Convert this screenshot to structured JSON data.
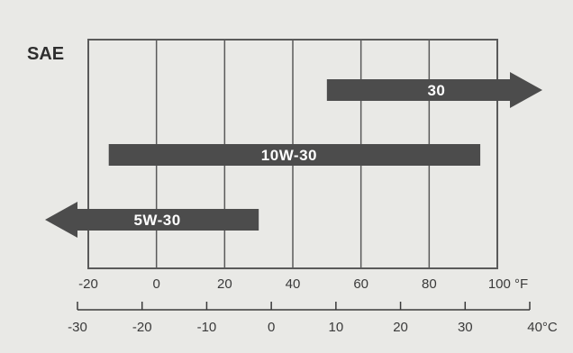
{
  "chart_data": {
    "type": "bar",
    "orientation": "horizontal-range",
    "title": "SAE",
    "x_axis_primary": {
      "unit_label": "°F",
      "ticks": [
        -20,
        0,
        20,
        40,
        60,
        80,
        100
      ],
      "range": [
        -20,
        100
      ]
    },
    "x_axis_secondary": {
      "unit_label": "°C",
      "ticks": [
        -30,
        -20,
        -10,
        0,
        10,
        20,
        30,
        40
      ],
      "range": [
        -30,
        40
      ]
    },
    "grid": true,
    "series": [
      {
        "name": "30",
        "start": 50,
        "end": 110,
        "open_ended": "right"
      },
      {
        "name": "10W-30",
        "start": -14,
        "end": 95,
        "open_ended": "none"
      },
      {
        "name": "5W-30",
        "start": -40,
        "end": 30,
        "open_ended": "left"
      }
    ],
    "colors": {
      "bar": "#4c4c4c",
      "grid": "#5a5a5a",
      "background": "#e9e9e6"
    }
  }
}
